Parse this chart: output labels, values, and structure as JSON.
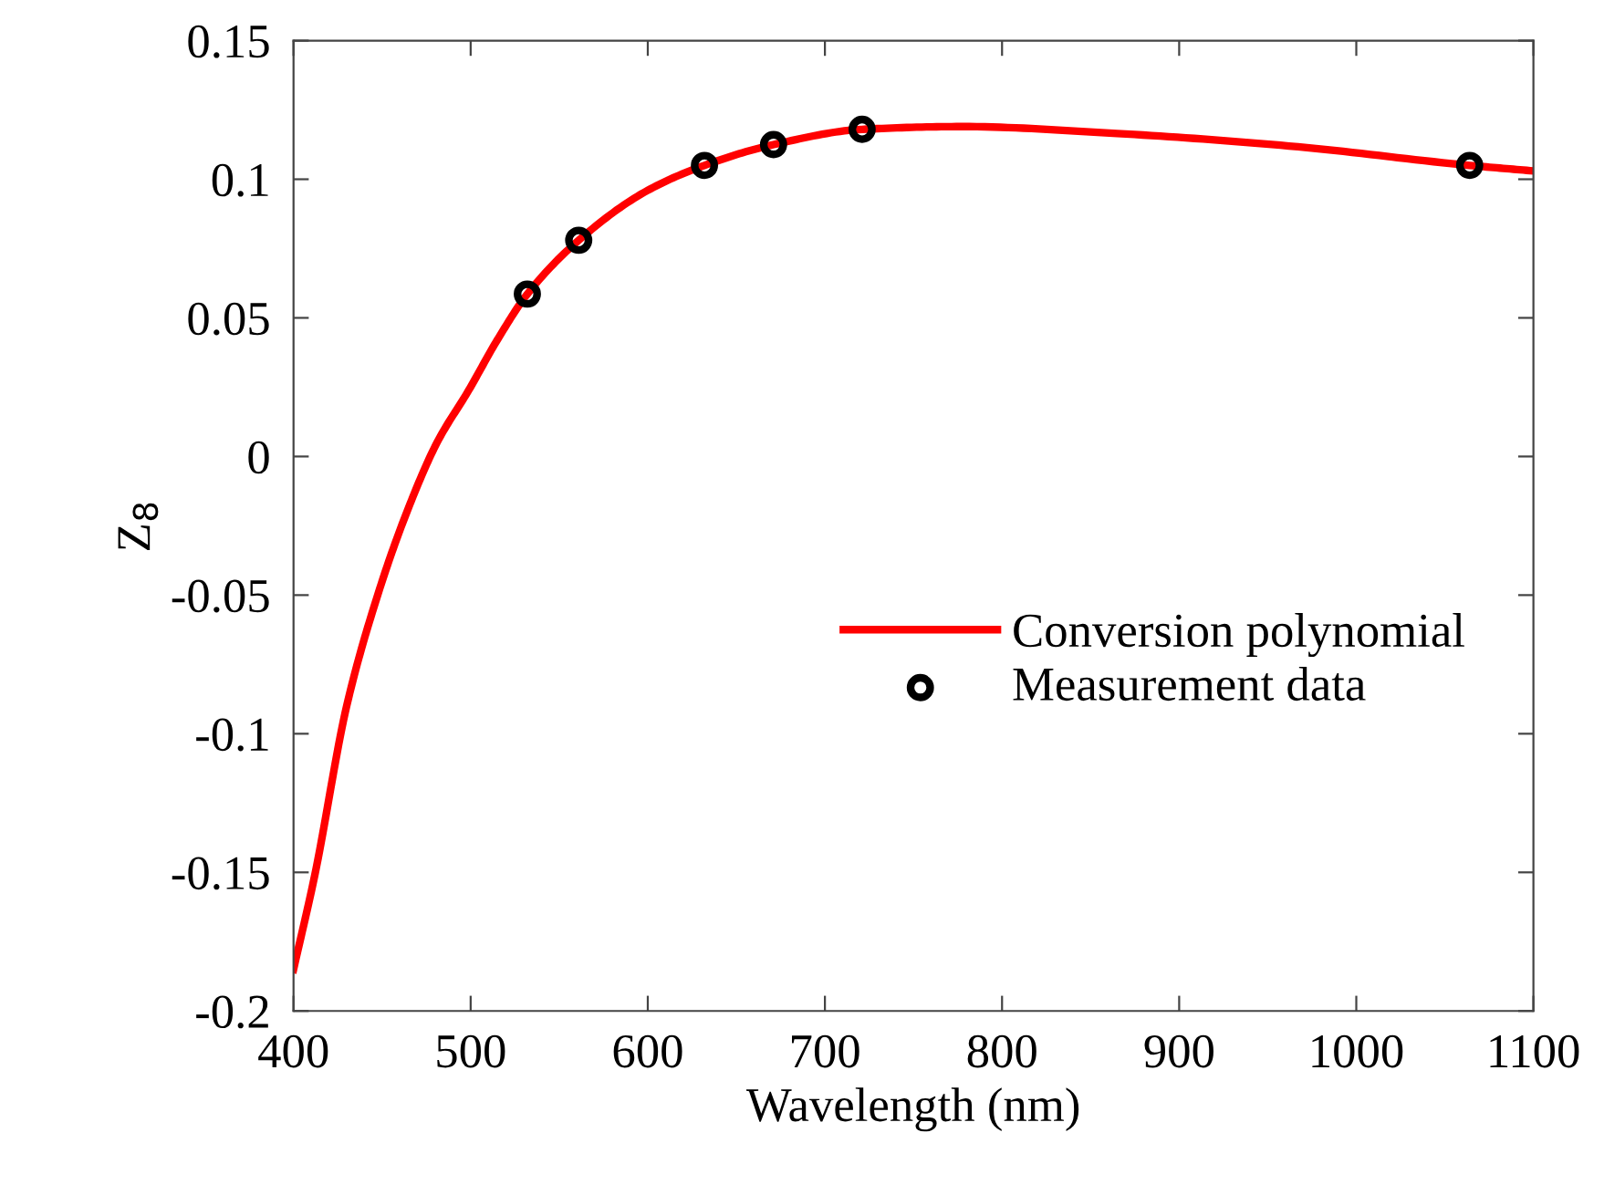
{
  "chart_data": {
    "type": "line",
    "xlabel": "Wavelength (nm)",
    "ylabel": "Z$_{8}$",
    "xlim": [
      400,
      1100
    ],
    "ylim": [
      -0.2,
      0.15
    ],
    "xticks": [
      400,
      500,
      600,
      700,
      800,
      900,
      1000,
      1100
    ],
    "yticks": [
      -0.2,
      -0.15,
      -0.1,
      -0.05,
      0,
      0.05,
      0.1,
      0.15
    ],
    "grid": false,
    "legend": "center right",
    "series": [
      {
        "name": "Conversion polynomial",
        "color": "#ff0000",
        "marker": "none",
        "line_style": "solid",
        "x": [
          400,
          412,
          430,
          447,
          464,
          481,
          499,
          515,
          532,
          561,
          600,
          632,
          671,
          721,
          777,
          865,
          962,
          1064,
          1100
        ],
        "values": [
          -0.185,
          -0.151,
          -0.09,
          -0.051,
          -0.02,
          0.005,
          0.024,
          0.042,
          0.0586,
          0.078,
          0.096,
          0.105,
          0.1125,
          0.118,
          0.119,
          0.1165,
          0.112,
          0.105,
          0.103
        ]
      },
      {
        "name": "Measurement data",
        "type": "scatter",
        "color": "#000000",
        "marker": "circle",
        "x": [
          532,
          561,
          632,
          671,
          721,
          1064
        ],
        "values": [
          0.0586,
          0.078,
          0.105,
          0.1125,
          0.118,
          0.105
        ]
      }
    ]
  }
}
